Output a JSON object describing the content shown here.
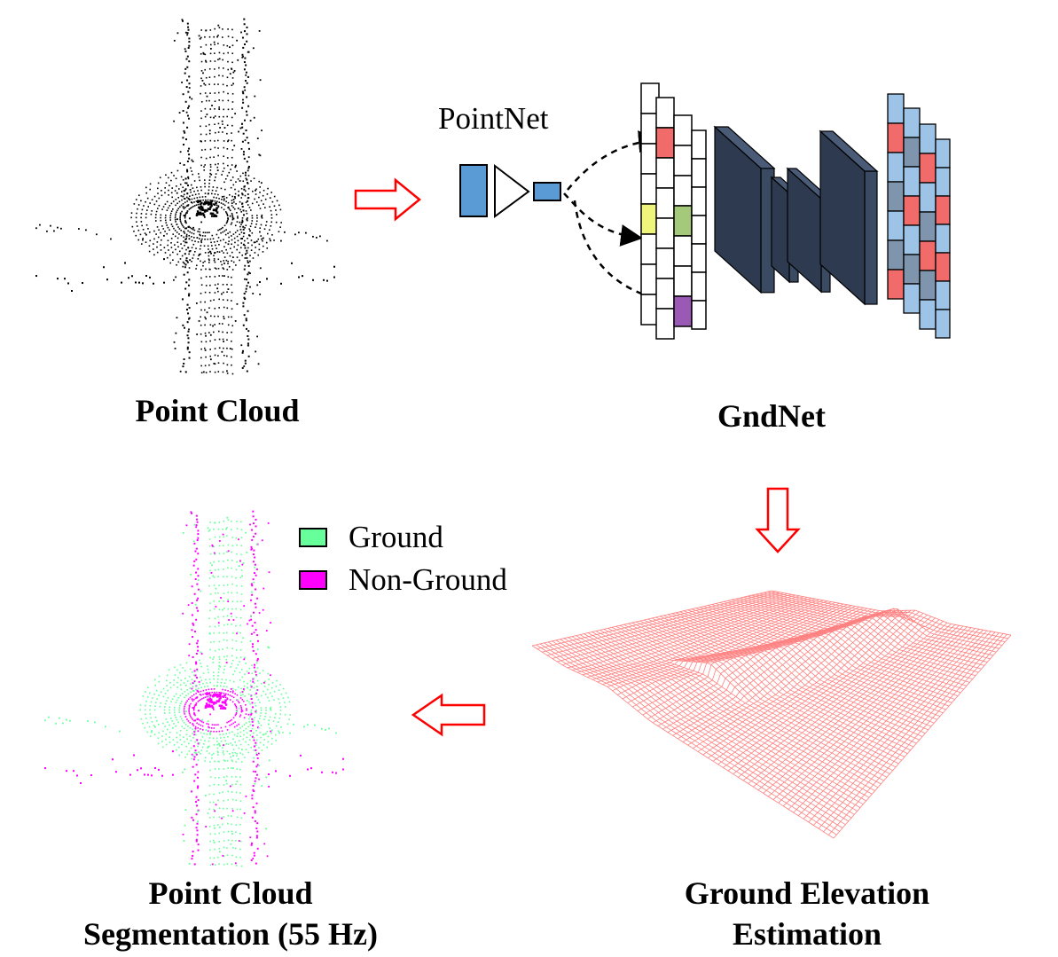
{
  "captions": {
    "point_cloud": "Point Cloud",
    "gndnet": "GndNet",
    "segmentation_line1": "Point Cloud",
    "segmentation_line2": "Segmentation (55 Hz)",
    "elevation_line1": "Ground Elevation",
    "elevation_line2": "Estimation"
  },
  "pointnet_label": "PointNet",
  "legend": [
    {
      "label": "Ground",
      "color": "#66ff99"
    },
    {
      "label": "Non-Ground",
      "color": "#ff00ff"
    }
  ],
  "colors": {
    "arrow": "#ff0000",
    "pointnet_blue": "#5b9bd5",
    "cnn_block": "#3a4a63",
    "grid_red": "#f26b6b",
    "grid_green": "#a4c97a",
    "grid_yellow": "#eef57a",
    "grid_purple": "#9b59b6",
    "output_blue": "#9dc3e6",
    "output_gray": "#7f95ad",
    "mesh": "#ff8080",
    "point_black": "#000000",
    "point_ground": "#66ff99",
    "point_nonground": "#ff00ff"
  }
}
